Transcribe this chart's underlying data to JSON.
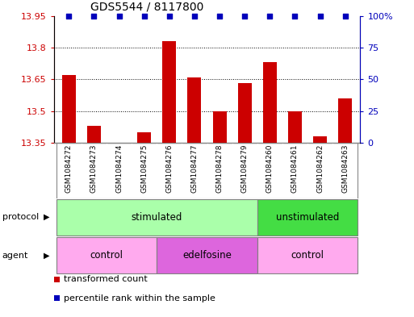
{
  "title": "GDS5544 / 8117800",
  "samples": [
    "GSM1084272",
    "GSM1084273",
    "GSM1084274",
    "GSM1084275",
    "GSM1084276",
    "GSM1084277",
    "GSM1084278",
    "GSM1084279",
    "GSM1084260",
    "GSM1084261",
    "GSM1084262",
    "GSM1084263"
  ],
  "red_values": [
    13.67,
    13.43,
    13.35,
    13.4,
    13.83,
    13.66,
    13.5,
    13.63,
    13.73,
    13.5,
    13.38,
    13.56
  ],
  "blue_values": [
    100,
    100,
    100,
    100,
    100,
    100,
    100,
    100,
    100,
    100,
    100,
    100
  ],
  "ylim_left": [
    13.35,
    13.95
  ],
  "ylim_right": [
    0,
    100
  ],
  "yticks_left": [
    13.35,
    13.5,
    13.65,
    13.8,
    13.95
  ],
  "yticks_right": [
    0,
    25,
    50,
    75,
    100
  ],
  "ytick_labels_right": [
    "0",
    "25",
    "50",
    "75",
    "100%"
  ],
  "protocol_groups": [
    {
      "label": "stimulated",
      "start": 0,
      "end": 8,
      "color": "#aaffaa"
    },
    {
      "label": "unstimulated",
      "start": 8,
      "end": 12,
      "color": "#44dd44"
    }
  ],
  "agent_groups": [
    {
      "label": "control",
      "start": 0,
      "end": 4,
      "color": "#ffaaee"
    },
    {
      "label": "edelfosine",
      "start": 4,
      "end": 8,
      "color": "#dd66dd"
    },
    {
      "label": "control",
      "start": 8,
      "end": 12,
      "color": "#ffaaee"
    }
  ],
  "bar_color": "#CC0000",
  "dot_color": "#0000BB",
  "bg_color": "#FFFFFF",
  "legend_red_label": "transformed count",
  "legend_blue_label": "percentile rank within the sample",
  "base_value": 13.35,
  "label_bg_color": "#cccccc",
  "outer_border_color": "#888888"
}
